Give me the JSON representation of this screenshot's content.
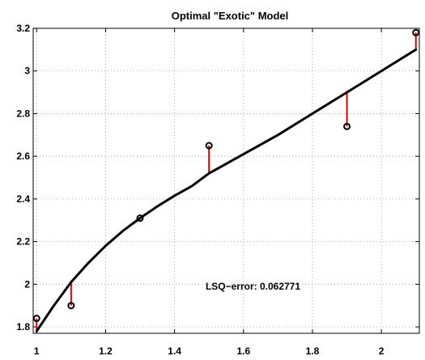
{
  "chart_data": {
    "type": "scatter",
    "title": "Optimal \"Exotic\" Model",
    "xlabel": "",
    "ylabel": "",
    "xlim": [
      0.99,
      2.11
    ],
    "ylim": [
      1.77,
      3.2
    ],
    "grid": true,
    "xticks": [
      1,
      1.2,
      1.4,
      1.6,
      1.8,
      2
    ],
    "xtick_labels": [
      "1",
      "1.2",
      "1.4",
      "1.6",
      "1.8",
      "2"
    ],
    "yticks": [
      1.8,
      2,
      2.2,
      2.4,
      2.6,
      2.8,
      3,
      3.2
    ],
    "ytick_labels": [
      "1.8",
      "2",
      "2.2",
      "2.4",
      "2.6",
      "2.8",
      "3",
      "3.2"
    ],
    "annotation": {
      "text": "LSQ−error: 0.062771",
      "x": 1.49,
      "y": 1.99
    },
    "series": [
      {
        "type": "scatter",
        "marker": "circle",
        "color": "#000000",
        "points": [
          {
            "x": 1.0,
            "y": 1.84
          },
          {
            "x": 1.1,
            "y": 1.9
          },
          {
            "x": 1.3,
            "y": 2.31
          },
          {
            "x": 1.5,
            "y": 2.65
          },
          {
            "x": 1.9,
            "y": 2.74
          },
          {
            "x": 2.1,
            "y": 3.18
          }
        ]
      },
      {
        "type": "line",
        "color": "#000000",
        "points": [
          {
            "x": 1.0,
            "y": 1.78
          },
          {
            "x": 1.05,
            "y": 1.9
          },
          {
            "x": 1.1,
            "y": 2.01
          },
          {
            "x": 1.15,
            "y": 2.1
          },
          {
            "x": 1.2,
            "y": 2.18
          },
          {
            "x": 1.25,
            "y": 2.25
          },
          {
            "x": 1.3,
            "y": 2.31
          },
          {
            "x": 1.35,
            "y": 2.365
          },
          {
            "x": 1.4,
            "y": 2.415
          },
          {
            "x": 1.45,
            "y": 2.46
          },
          {
            "x": 1.5,
            "y": 2.52
          },
          {
            "x": 1.6,
            "y": 2.61
          },
          {
            "x": 1.7,
            "y": 2.7
          },
          {
            "x": 1.8,
            "y": 2.8
          },
          {
            "x": 1.9,
            "y": 2.9
          },
          {
            "x": 2.0,
            "y": 3.0
          },
          {
            "x": 2.1,
            "y": 3.1
          }
        ]
      },
      {
        "type": "residuals",
        "color": "#e00000",
        "segments": [
          {
            "x": 1.0,
            "y1": 1.84,
            "y2": 1.78
          },
          {
            "x": 1.1,
            "y1": 1.9,
            "y2": 2.01
          },
          {
            "x": 1.3,
            "y1": 2.31,
            "y2": 2.31
          },
          {
            "x": 1.5,
            "y1": 2.65,
            "y2": 2.52
          },
          {
            "x": 1.9,
            "y1": 2.74,
            "y2": 2.9
          },
          {
            "x": 2.1,
            "y1": 3.18,
            "y2": 3.1
          }
        ]
      }
    ]
  }
}
